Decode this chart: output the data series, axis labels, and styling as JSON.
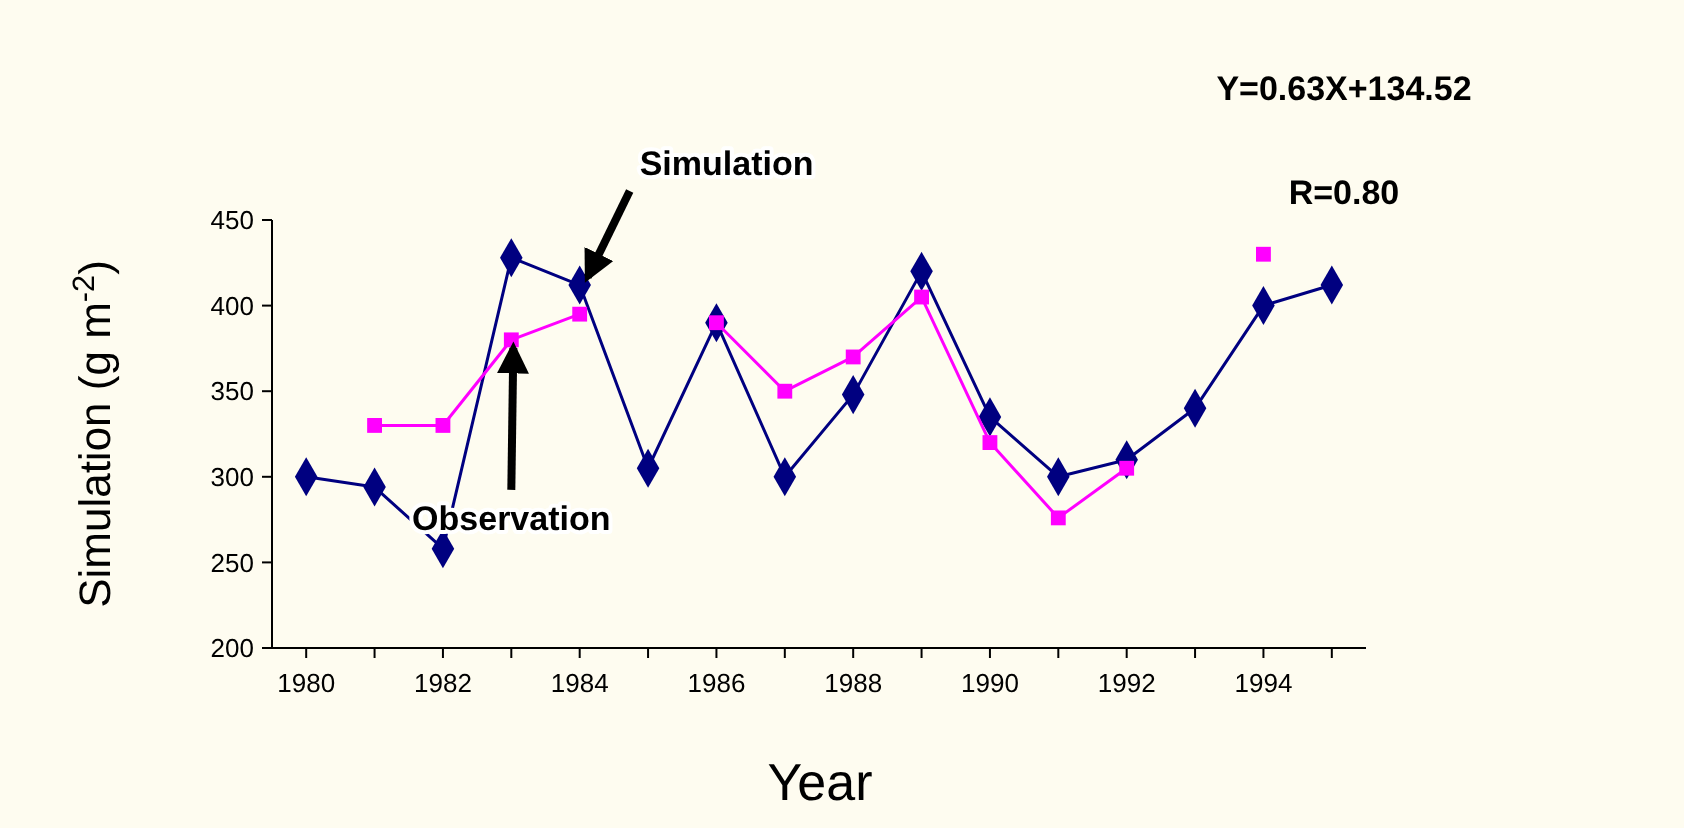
{
  "chart_data": {
    "type": "line",
    "xlabel": "Year",
    "ylabel": "Simulation (g m$^{-2}$)",
    "x": [
      1980,
      1981,
      1982,
      1983,
      1984,
      1985,
      1986,
      1987,
      1988,
      1989,
      1990,
      1991,
      1992,
      1993,
      1994,
      1995
    ],
    "series": [
      {
        "color": "#000080",
        "marker": "diamond",
        "values": [
          300,
          294,
          258,
          428,
          412,
          305,
          390,
          300,
          348,
          420,
          335,
          300,
          310,
          340,
          400,
          412
        ]
      },
      {
        "color": "#ff00ff",
        "marker": "square",
        "values": [
          null,
          330,
          330,
          380,
          395,
          null,
          390,
          350,
          370,
          405,
          320,
          276,
          305,
          null,
          430,
          null
        ]
      }
    ],
    "xlim": [
      1979.5,
      1995.5
    ],
    "xticks": [
      1980,
      {
        "value": 1981,
        "label": null
      },
      1982,
      {
        "value": 1983,
        "label": null
      },
      1984,
      {
        "value": 1985,
        "label": null
      },
      1986,
      {
        "value": 1987,
        "label": null
      },
      1988,
      {
        "value": 1989,
        "label": null
      },
      1990,
      {
        "value": 1991,
        "label": null
      },
      1992,
      {
        "value": 1993,
        "label": null
      },
      1994,
      {
        "value": 1995,
        "label": null
      }
    ],
    "ylim": [
      200,
      450
    ],
    "yticks": [
      200,
      250,
      300,
      350,
      400,
      450
    ],
    "grid": false,
    "line_style": "solid",
    "annotations": [
      {
        "text": "Simulation",
        "x": 1984,
        "y": 412
      },
      {
        "text": "Observation",
        "x": 1983,
        "y": 380
      },
      "Y=0.63X+134.52",
      "R=0.80"
    ]
  }
}
